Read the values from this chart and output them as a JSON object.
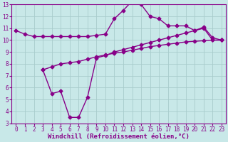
{
  "line1_x": [
    0,
    1,
    2,
    3,
    4,
    5,
    6,
    7,
    8,
    9,
    10,
    11,
    12,
    13,
    14,
    15,
    16,
    17,
    18,
    19,
    20,
    21,
    22,
    23
  ],
  "line1_y": [
    10.8,
    10.5,
    10.3,
    10.3,
    10.3,
    10.3,
    10.3,
    10.3,
    10.3,
    10.4,
    10.5,
    11.8,
    12.5,
    13.3,
    13.0,
    12.0,
    11.8,
    11.2,
    11.2,
    11.2,
    10.8,
    11.1,
    10.2,
    10.0
  ],
  "line2_x": [
    3,
    4,
    5,
    6,
    7,
    8,
    9,
    10,
    11,
    12,
    13,
    14,
    15,
    16,
    17,
    18,
    19,
    20,
    21,
    22,
    23
  ],
  "line2_y": [
    7.5,
    5.5,
    5.7,
    3.5,
    3.5,
    5.2,
    8.5,
    8.7,
    9.0,
    9.2,
    9.4,
    9.6,
    9.8,
    10.0,
    10.2,
    10.4,
    10.6,
    10.8,
    11.0,
    10.0,
    10.0
  ],
  "line3_x": [
    3,
    4,
    5,
    6,
    7,
    8,
    9,
    10,
    11,
    12,
    13,
    14,
    15,
    16,
    17,
    18,
    19,
    20,
    21,
    22,
    23
  ],
  "line3_y": [
    7.5,
    7.75,
    8.0,
    8.1,
    8.2,
    8.4,
    8.6,
    8.75,
    8.9,
    9.0,
    9.15,
    9.3,
    9.45,
    9.55,
    9.65,
    9.75,
    9.85,
    9.9,
    9.95,
    10.0,
    10.0
  ],
  "color": "#880088",
  "bg_color": "#c8e8e8",
  "grid_color": "#a8cccc",
  "xlabel": "Windchill (Refroidissement éolien,°C)",
  "xlim": [
    -0.5,
    23.5
  ],
  "ylim": [
    3,
    13
  ],
  "xticks": [
    0,
    1,
    2,
    3,
    4,
    5,
    6,
    7,
    8,
    9,
    10,
    11,
    12,
    13,
    14,
    15,
    16,
    17,
    18,
    19,
    20,
    21,
    22,
    23
  ],
  "yticks": [
    3,
    4,
    5,
    6,
    7,
    8,
    9,
    10,
    11,
    12,
    13
  ],
  "marker": "D",
  "markersize": 2.5,
  "linewidth": 1.0,
  "xlabel_fontsize": 6.5,
  "tick_fontsize": 5.5
}
